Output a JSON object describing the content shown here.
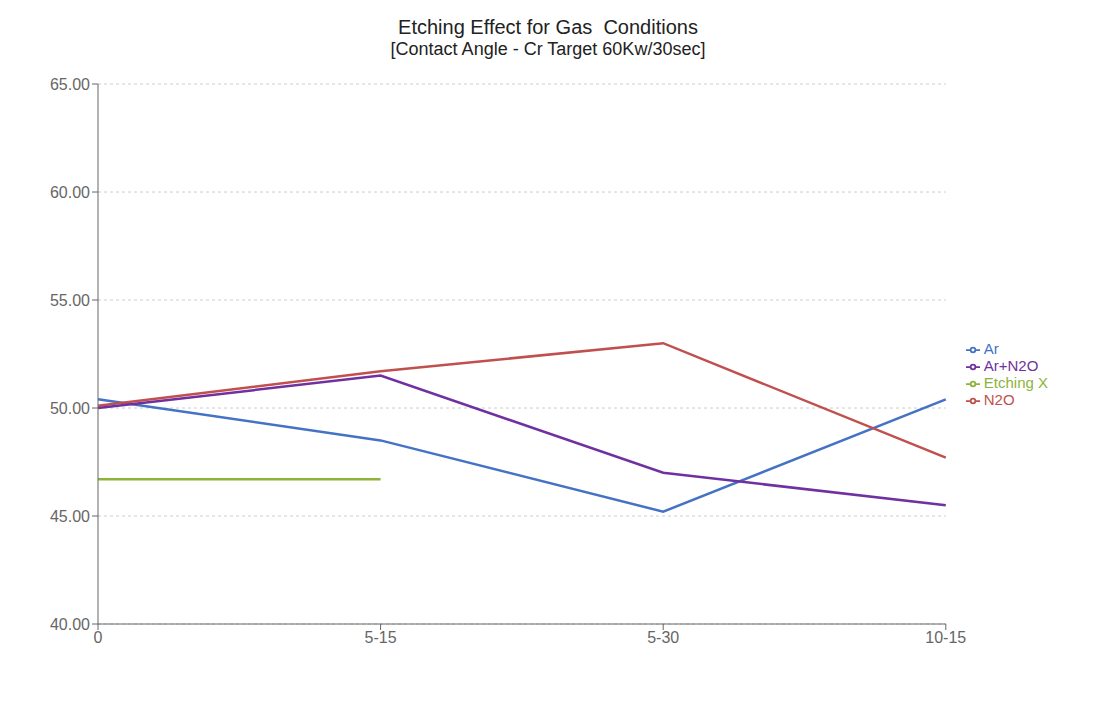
{
  "chart_data": {
    "type": "line",
    "title": "Etching Effect for Gas  Conditions",
    "subtitle": "[Contact Angle - Cr Target 60Kw/30sec]",
    "categories": [
      "0",
      "5-15",
      "5-30",
      "10-15"
    ],
    "series": [
      {
        "name": "Etching X",
        "color": "#8DB33A",
        "values": [
          46.7,
          46.7,
          null,
          null
        ]
      },
      {
        "name": "Ar",
        "color": "#4472C4",
        "values": [
          50.4,
          48.5,
          45.2,
          50.4
        ]
      },
      {
        "name": "N2O",
        "color": "#C0504D",
        "values": [
          50.1,
          51.7,
          53.0,
          47.7
        ]
      },
      {
        "name": "Ar+N2O",
        "color": "#7030A0",
        "values": [
          50.0,
          51.5,
          47.0,
          45.5
        ]
      }
    ],
    "ylim": [
      40.0,
      65.0
    ],
    "yticks": [
      {
        "value": 40.0,
        "label": "40.00"
      },
      {
        "value": 45.0,
        "label": "45.00"
      },
      {
        "value": 50.0,
        "label": "50.00"
      },
      {
        "value": 55.0,
        "label": "55.00"
      },
      {
        "value": 60.0,
        "label": "60.00"
      },
      {
        "value": 65.0,
        "label": "65.00"
      }
    ],
    "grid": true,
    "legend": "right"
  }
}
